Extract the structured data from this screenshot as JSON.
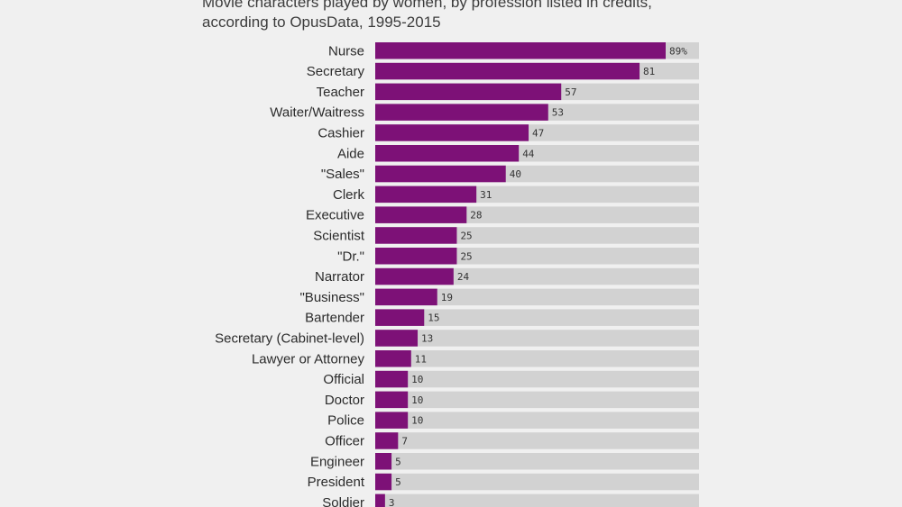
{
  "subtitle_lines": [
    "Movie characters played by women, by profession listed in credits,",
    "according to OpusData, 1995-2015"
  ],
  "colors": {
    "bar": "#7d1177",
    "track": "#d2d2d2",
    "background": "#f0f0f0"
  },
  "chart_data": {
    "type": "bar",
    "orientation": "horizontal",
    "categories": [
      "Nurse",
      "Secretary",
      "Teacher",
      "Waiter/Waitress",
      "Cashier",
      "Aide",
      "\"Sales\"",
      "Clerk",
      "Executive",
      "Scientist",
      "\"Dr.\"",
      "Narrator",
      "\"Business\"",
      "Bartender",
      "Secretary (Cabinet-level)",
      "Lawyer or Attorney",
      "Official",
      "Doctor",
      "Police",
      "Officer",
      "Engineer",
      "President",
      "Soldier"
    ],
    "values": [
      89,
      81,
      57,
      53,
      47,
      44,
      40,
      31,
      28,
      25,
      25,
      24,
      19,
      15,
      13,
      11,
      10,
      10,
      10,
      7,
      5,
      5,
      3
    ],
    "value_labels": [
      "89%",
      "81",
      "57",
      "53",
      "47",
      "44",
      "40",
      "31",
      "28",
      "25",
      "25",
      "24",
      "19",
      "15",
      "13",
      "11",
      "10",
      "10",
      "10",
      "7",
      "5",
      "5",
      "3"
    ],
    "xlim": [
      0,
      100
    ],
    "grid": false,
    "legend": "none"
  }
}
